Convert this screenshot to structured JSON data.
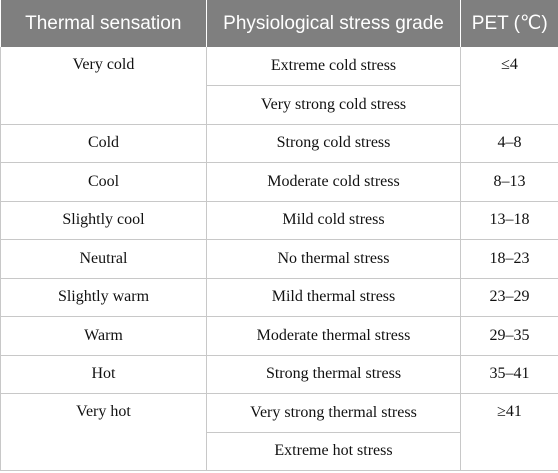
{
  "table": {
    "headers": [
      "Thermal sensation",
      "Physiological stress grade",
      "PET (℃)"
    ],
    "groups": [
      {
        "sensation": "Very cold",
        "grades": [
          "Extreme cold stress",
          "Very strong cold stress"
        ],
        "pet": "≤4"
      },
      {
        "sensation": "Cold",
        "grades": [
          "Strong cold stress"
        ],
        "pet": "4–8"
      },
      {
        "sensation": "Cool",
        "grades": [
          "Moderate cold stress"
        ],
        "pet": "8–13"
      },
      {
        "sensation": "Slightly cool",
        "grades": [
          "Mild cold stress"
        ],
        "pet": "13–18"
      },
      {
        "sensation": "Neutral",
        "grades": [
          "No thermal stress"
        ],
        "pet": "18–23"
      },
      {
        "sensation": "Slightly warm",
        "grades": [
          "Mild thermal stress"
        ],
        "pet": "23–29"
      },
      {
        "sensation": "Warm",
        "grades": [
          "Moderate thermal stress"
        ],
        "pet": "29–35"
      },
      {
        "sensation": "Hot",
        "grades": [
          "Strong thermal stress"
        ],
        "pet": "35–41"
      },
      {
        "sensation": "Very hot",
        "grades": [
          "Very strong thermal stress",
          "Extreme hot stress"
        ],
        "pet": "≥41"
      }
    ]
  }
}
